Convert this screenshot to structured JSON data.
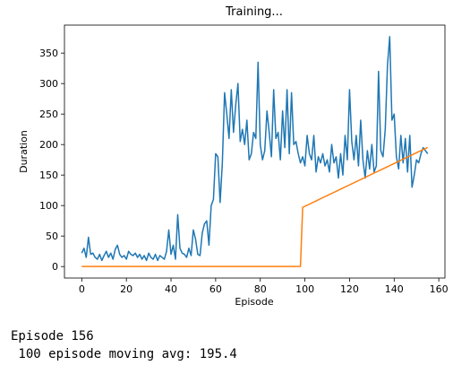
{
  "chart_data": {
    "type": "line",
    "title": "Training...",
    "x_label": "Episode",
    "y_label": "Duration",
    "x": [
      0,
      1,
      2,
      3,
      4,
      5,
      6,
      7,
      8,
      9,
      10,
      11,
      12,
      13,
      14,
      15,
      16,
      17,
      18,
      19,
      20,
      21,
      22,
      23,
      24,
      25,
      26,
      27,
      28,
      29,
      30,
      31,
      32,
      33,
      34,
      35,
      36,
      37,
      38,
      39,
      40,
      41,
      42,
      43,
      44,
      45,
      46,
      47,
      48,
      49,
      50,
      51,
      52,
      53,
      54,
      55,
      56,
      57,
      58,
      59,
      60,
      61,
      62,
      63,
      64,
      65,
      66,
      67,
      68,
      69,
      70,
      71,
      72,
      73,
      74,
      75,
      76,
      77,
      78,
      79,
      80,
      81,
      82,
      83,
      84,
      85,
      86,
      87,
      88,
      89,
      90,
      91,
      92,
      93,
      94,
      95,
      96,
      97,
      98,
      99,
      100,
      101,
      102,
      103,
      104,
      105,
      106,
      107,
      108,
      109,
      110,
      111,
      112,
      113,
      114,
      115,
      116,
      117,
      118,
      119,
      120,
      121,
      122,
      123,
      124,
      125,
      126,
      127,
      128,
      129,
      130,
      131,
      132,
      133,
      134,
      135,
      136,
      137,
      138,
      139,
      140,
      141,
      142,
      143,
      144,
      145,
      146,
      147,
      148,
      149,
      150,
      151,
      152,
      153,
      154,
      155
    ],
    "series": [
      {
        "color": "#1f77b4",
        "values": [
          22,
          30,
          15,
          48,
          20,
          22,
          15,
          12,
          20,
          10,
          18,
          25,
          15,
          22,
          12,
          28,
          35,
          20,
          15,
          18,
          12,
          25,
          20,
          18,
          22,
          15,
          20,
          12,
          18,
          10,
          22,
          15,
          12,
          20,
          10,
          18,
          15,
          12,
          25,
          60,
          20,
          35,
          12,
          85,
          30,
          22,
          20,
          15,
          30,
          18,
          60,
          45,
          20,
          18,
          55,
          70,
          75,
          35,
          100,
          110,
          185,
          180,
          105,
          170,
          285,
          250,
          210,
          290,
          220,
          265,
          300,
          205,
          225,
          200,
          240,
          175,
          185,
          220,
          210,
          335,
          200,
          175,
          190,
          255,
          220,
          180,
          290,
          210,
          220,
          175,
          255,
          195,
          290,
          185,
          285,
          200,
          205,
          185,
          170,
          180,
          165,
          215,
          185,
          175,
          215,
          155,
          180,
          170,
          185,
          165,
          175,
          155,
          200,
          170,
          180,
          145,
          185,
          150,
          215,
          175,
          290,
          205,
          175,
          215,
          165,
          240,
          175,
          145,
          190,
          160,
          200,
          155,
          165,
          320,
          190,
          180,
          225,
          330,
          377,
          240,
          250,
          180,
          160,
          215,
          170,
          210,
          155,
          215,
          130,
          150,
          175,
          170,
          185,
          195,
          190,
          185
        ]
      },
      {
        "color": "#ff7f0e",
        "values": [
          0,
          0,
          0,
          0,
          0,
          0,
          0,
          0,
          0,
          0,
          0,
          0,
          0,
          0,
          0,
          0,
          0,
          0,
          0,
          0,
          0,
          0,
          0,
          0,
          0,
          0,
          0,
          0,
          0,
          0,
          0,
          0,
          0,
          0,
          0,
          0,
          0,
          0,
          0,
          0,
          0,
          0,
          0,
          0,
          0,
          0,
          0,
          0,
          0,
          0,
          0,
          0,
          0,
          0,
          0,
          0,
          0,
          0,
          0,
          0,
          0,
          0,
          0,
          0,
          0,
          0,
          0,
          0,
          0,
          0,
          0,
          0,
          0,
          0,
          0,
          0,
          0,
          0,
          0,
          0,
          0,
          0,
          0,
          0,
          0,
          0,
          0,
          0,
          0,
          0,
          0,
          0,
          0,
          0,
          0,
          0,
          0,
          0,
          0,
          97.0,
          98.8,
          100.5,
          102.3,
          104.0,
          105.8,
          107.5,
          109.3,
          111.1,
          112.8,
          114.6,
          116.3,
          118.1,
          119.8,
          121.6,
          123.4,
          125.1,
          126.9,
          128.6,
          130.4,
          132.1,
          133.9,
          135.7,
          137.4,
          139.2,
          140.9,
          142.7,
          144.4,
          146.2,
          148.0,
          149.7,
          151.5,
          153.2,
          155.0,
          156.7,
          158.5,
          160.3,
          162.0,
          163.8,
          165.5,
          167.3,
          169.0,
          170.8,
          172.6,
          174.3,
          176.1,
          177.8,
          179.6,
          181.3,
          183.1,
          184.9,
          186.6,
          188.4,
          190.1,
          191.9,
          193.6,
          195.4
        ]
      }
    ],
    "xlim": [
      -7.75,
      162.75
    ],
    "xticks": [
      0,
      20,
      40,
      60,
      80,
      100,
      120,
      140,
      160
    ],
    "ylim": [
      -18.85,
      395.85
    ],
    "yticks": [
      0,
      50,
      100,
      150,
      200,
      250,
      300,
      350
    ],
    "grid": false
  },
  "output": {
    "episode_line": "Episode 156",
    "avg_line": " 100 episode moving avg: 195.4"
  }
}
